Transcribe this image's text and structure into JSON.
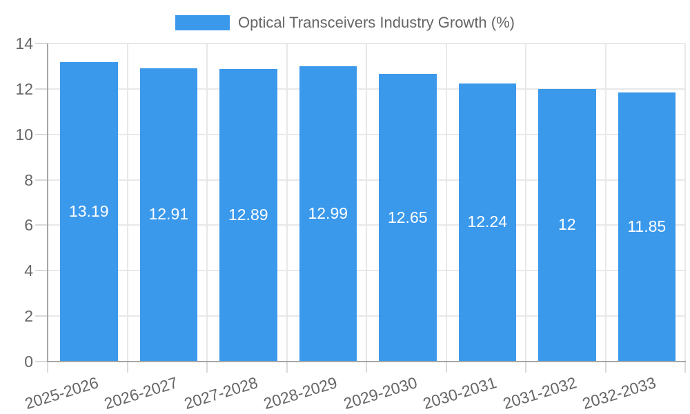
{
  "legend": {
    "label": "Optical Transceivers Industry Growth (%)"
  },
  "colors": {
    "bar": "#3B99EC",
    "bar_label": "#FFFFFF",
    "grid": "#E8E8E8",
    "tick": "#D9D9D9",
    "axis_line": "#A6A6A6",
    "tick_text": "#666666"
  },
  "chart_data": {
    "type": "bar",
    "title": "Optical Transceivers Industry Growth (%)",
    "categories": [
      "2025-2026",
      "2026-2027",
      "2027-2028",
      "2028-2029",
      "2029-2030",
      "2030-2031",
      "2031-2032",
      "2032-2033"
    ],
    "values": [
      13.19,
      12.91,
      12.89,
      12.99,
      12.65,
      12.24,
      12,
      11.85
    ],
    "value_labels": [
      "13.19",
      "12.91",
      "12.89",
      "12.99",
      "12.65",
      "12.24",
      "12",
      "11.85"
    ],
    "series_name": "Optical Transceivers Industry Growth (%)",
    "xlabel": "",
    "ylabel": "",
    "ylim": [
      0,
      14
    ],
    "yticks": [
      0,
      2,
      4,
      6,
      8,
      10,
      12,
      14
    ],
    "grid": true,
    "legend_position": "top",
    "bar_color": "#3B99EC",
    "value_label_position": "center-inside"
  }
}
